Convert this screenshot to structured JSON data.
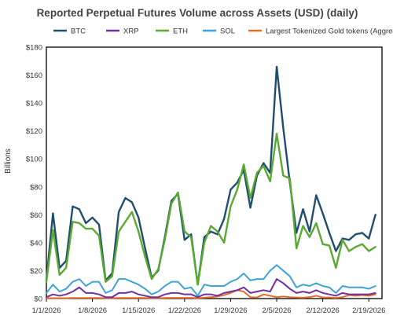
{
  "chart_data": {
    "type": "line",
    "title": "Reported Perpetual Futures Volume across Assets (USD) (daily)",
    "ylabel": "Billions",
    "xlabel": "",
    "ylim": [
      0,
      180
    ],
    "yticks": [
      0,
      20,
      40,
      60,
      80,
      100,
      120,
      140,
      160,
      180
    ],
    "ytick_labels": [
      "$0",
      "$20",
      "$40",
      "$60",
      "$80",
      "$100",
      "$120",
      "$140",
      "$160",
      "$180"
    ],
    "x_start": "2026-01-01",
    "x_end": "2026-02-21",
    "xtick_labels": [
      "1/1/2026",
      "1/8/2026",
      "1/15/2026",
      "1/22/2026",
      "1/29/2026",
      "2/5/2026",
      "2/12/2026",
      "2/19/2026"
    ],
    "grid": false,
    "legend_position": "top",
    "series": [
      {
        "name": "BTC",
        "color": "#1f4e6e",
        "values": [
          13,
          61,
          22,
          27,
          66,
          64,
          54,
          58,
          53,
          13,
          18,
          62,
          72,
          69,
          58,
          36,
          15,
          20,
          44,
          70,
          75,
          42,
          46,
          10,
          44,
          48,
          46,
          57,
          78,
          83,
          92,
          65,
          88,
          97,
          90,
          166,
          122,
          83,
          47,
          64,
          48,
          74,
          61,
          47,
          34,
          43,
          42,
          46,
          47,
          43,
          60
        ]
      },
      {
        "name": "XRP",
        "color": "#7030a0",
        "values": [
          1,
          3,
          2,
          3,
          5,
          8,
          4,
          4,
          3,
          1,
          1,
          4,
          4,
          5,
          3,
          2,
          1,
          1,
          3,
          4,
          4,
          3,
          3,
          1,
          3,
          3,
          2,
          4,
          5,
          6,
          8,
          4,
          5,
          6,
          5,
          14,
          11,
          7,
          4,
          5,
          4,
          6,
          4,
          3,
          2,
          4,
          3,
          3,
          3,
          3,
          4
        ]
      },
      {
        "name": "ETH",
        "color": "#5aaa32",
        "values": [
          12,
          49,
          17,
          22,
          55,
          54,
          50,
          50,
          45,
          12,
          16,
          48,
          55,
          62,
          48,
          30,
          14,
          21,
          42,
          68,
          76,
          48,
          44,
          10,
          40,
          52,
          48,
          40,
          66,
          78,
          96,
          72,
          90,
          95,
          84,
          118,
          88,
          86,
          36,
          52,
          44,
          54,
          39,
          38,
          22,
          42,
          34,
          37,
          39,
          34,
          37
        ]
      },
      {
        "name": "SOL",
        "color": "#3ea3d6",
        "values": [
          4,
          10,
          5,
          7,
          12,
          14,
          9,
          12,
          12,
          4,
          6,
          14,
          14,
          12,
          10,
          7,
          3,
          5,
          9,
          12,
          12,
          7,
          8,
          2,
          10,
          9,
          9,
          9,
          12,
          14,
          18,
          13,
          14,
          14,
          20,
          24,
          20,
          16,
          8,
          10,
          9,
          11,
          9,
          8,
          4,
          9,
          8,
          8,
          8,
          7,
          9
        ]
      },
      {
        "name": "Largest Tokenized Gold tokens (Aggregate)",
        "color": "#e46c2a",
        "values": [
          0.3,
          0.3,
          0.3,
          0.3,
          0.4,
          0.4,
          0.4,
          0.4,
          0.4,
          0.3,
          0.3,
          0.4,
          0.4,
          0.4,
          0.4,
          0.4,
          0.3,
          0.3,
          0.4,
          0.5,
          0.5,
          0.5,
          0.5,
          0.3,
          0.6,
          1.0,
          1.5,
          2.5,
          4.0,
          6.0,
          5.0,
          1.0,
          0.8,
          3.0,
          2.0,
          1.0,
          1.5,
          1.0,
          0.8,
          0.6,
          1.0,
          2.0,
          0.8,
          0.8,
          0.5,
          1.0,
          2.5,
          2.0,
          2.5,
          2.0,
          3.0
        ]
      }
    ]
  }
}
